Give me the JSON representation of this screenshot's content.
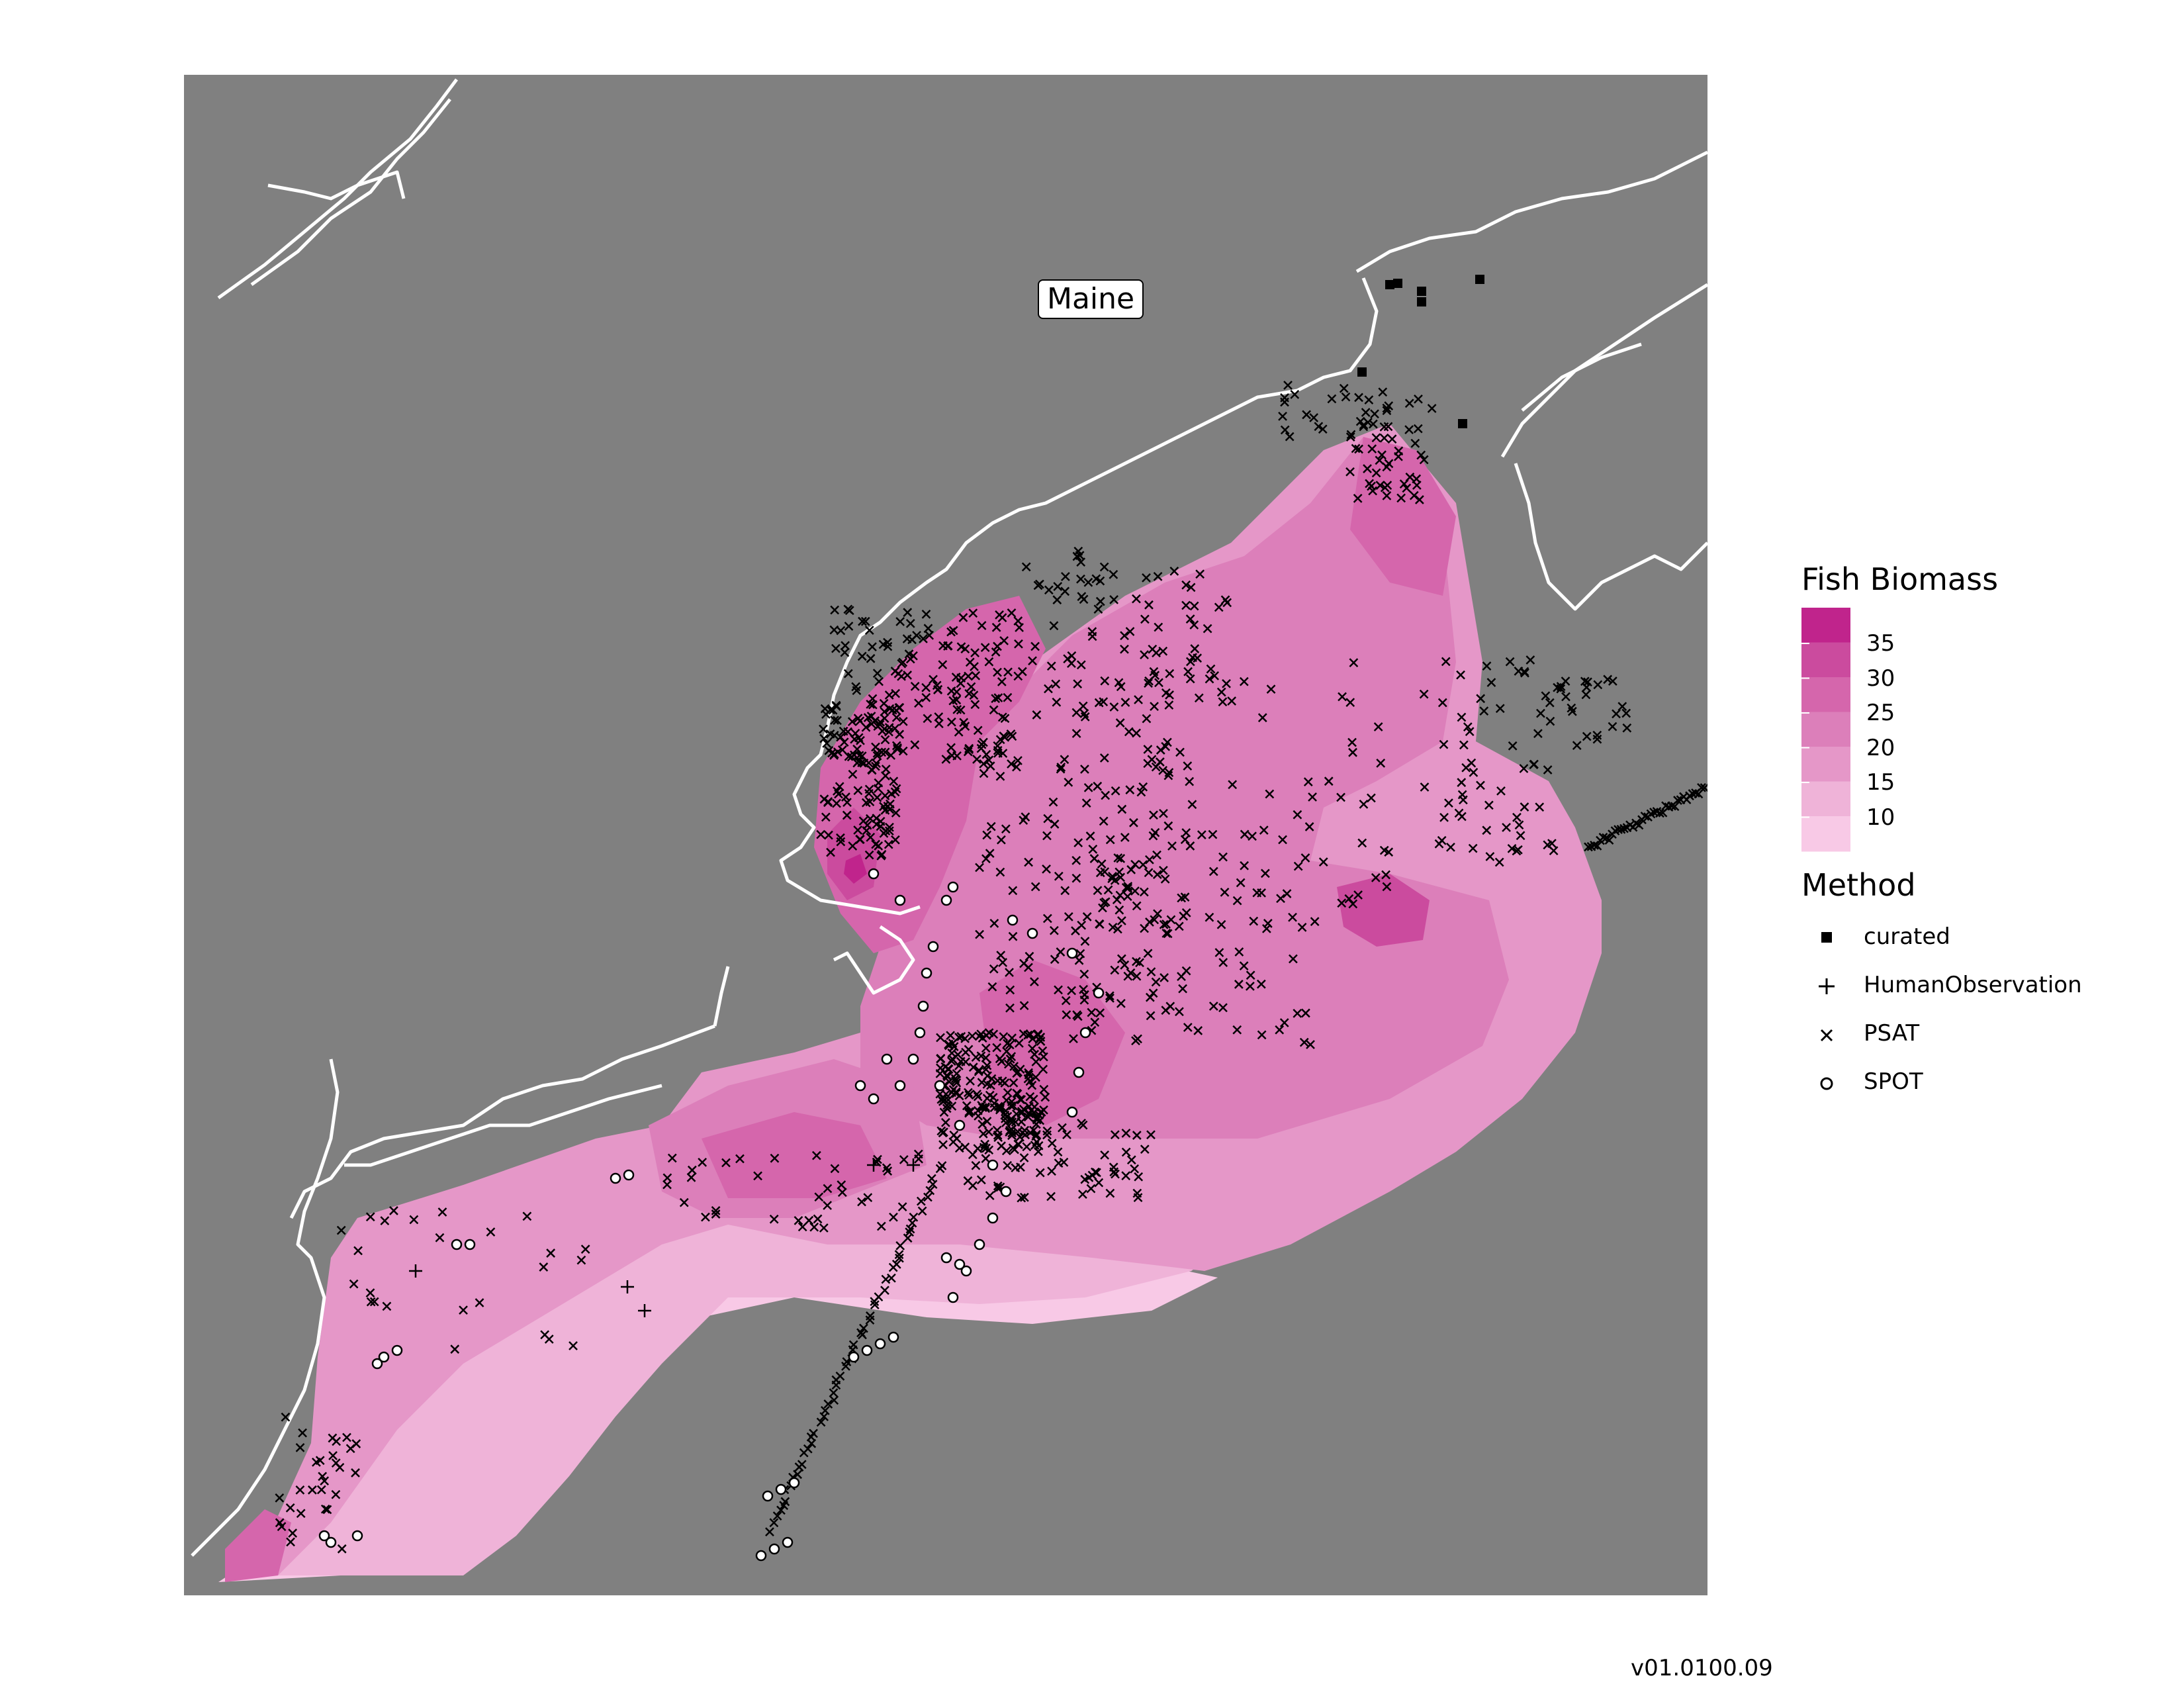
{
  "map": {
    "place_label": "Maine",
    "background_color": "#808080",
    "coast_color": "#ffffff"
  },
  "legend": {
    "biomass_title": "Fish Biomass",
    "biomass_ticks": [
      "35",
      "30",
      "25",
      "20",
      "15",
      "10"
    ],
    "biomass_colors": [
      "#c0248c",
      "#cb4b9e",
      "#d566ac",
      "#dc7fba",
      "#e597c8",
      "#efb3d8",
      "#f8c9e6"
    ],
    "method_title": "Method",
    "methods": [
      {
        "label": "curated",
        "symbol": "square"
      },
      {
        "label": "HumanObservation",
        "symbol": "plus"
      },
      {
        "label": "PSAT",
        "symbol": "cross"
      },
      {
        "label": "SPOT",
        "symbol": "circle"
      }
    ]
  },
  "footer": {
    "version": "v01.0100.09"
  }
}
